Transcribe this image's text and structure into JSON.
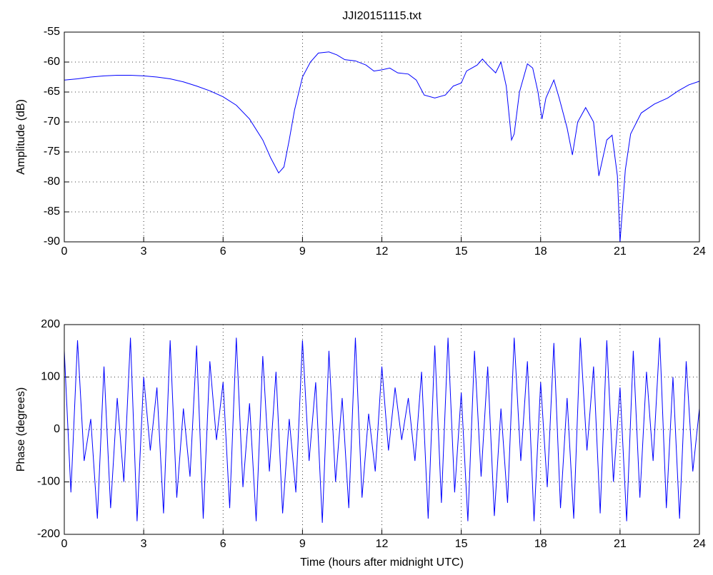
{
  "chart_data": [
    {
      "type": "line",
      "title": "JJI20151115.txt",
      "y_label": "Amplitude (dB)",
      "grid": true,
      "xlim": [
        0,
        24
      ],
      "xticks": [
        0,
        3,
        6,
        9,
        12,
        15,
        18,
        21,
        24
      ],
      "ylim": [
        -90,
        -55
      ],
      "yticks": [
        -90,
        -85,
        -80,
        -75,
        -70,
        -65,
        -60,
        -55
      ],
      "x": [
        0,
        0.5,
        1,
        1.5,
        2,
        2.5,
        3,
        3.5,
        4,
        4.5,
        5,
        5.5,
        6,
        6.5,
        7,
        7.5,
        7.8,
        8.1,
        8.3,
        8.5,
        8.7,
        9,
        9.3,
        9.6,
        10,
        10.3,
        10.6,
        11,
        11.4,
        11.7,
        12,
        12.3,
        12.6,
        13,
        13.3,
        13.6,
        14,
        14.4,
        14.7,
        15,
        15.2,
        15.6,
        15.8,
        16,
        16.3,
        16.5,
        16.7,
        16.9,
        17,
        17.2,
        17.5,
        17.7,
        17.9,
        18.05,
        18.2,
        18.5,
        18.7,
        19,
        19.2,
        19.4,
        19.7,
        20,
        20.2,
        20.5,
        20.7,
        20.9,
        21,
        21.2,
        21.4,
        21.8,
        22.3,
        22.8,
        23.2,
        23.6,
        24
      ],
      "series": [
        {
          "color": "#0000ff",
          "values": [
            -63,
            -62.8,
            -62.5,
            -62.3,
            -62.2,
            -62.2,
            -62.3,
            -62.5,
            -62.8,
            -63.3,
            -64,
            -64.8,
            -65.8,
            -67.2,
            -69.5,
            -73,
            -76,
            -78.5,
            -77.5,
            -73,
            -68,
            -62.5,
            -60,
            -58.5,
            -58.3,
            -58.8,
            -59.6,
            -59.8,
            -60.5,
            -61.5,
            -61.3,
            -61,
            -61.8,
            -62,
            -63,
            -65.5,
            -66,
            -65.5,
            -64,
            -63.5,
            -61.5,
            -60.5,
            -59.5,
            -60.5,
            -61.8,
            -60,
            -64,
            -73,
            -72,
            -65,
            -60.3,
            -61,
            -65,
            -69.5,
            -66,
            -63,
            -66,
            -71,
            -75.5,
            -70,
            -67.6,
            -70,
            -79,
            -73,
            -72.2,
            -79,
            -90,
            -78,
            -72,
            -68.5,
            -67,
            -66,
            -64.8,
            -63.8,
            -63.2
          ]
        }
      ]
    },
    {
      "type": "line",
      "y_label": "Phase (degrees)",
      "x_label": "Time (hours after midnight UTC)",
      "grid": true,
      "xlim": [
        0,
        24
      ],
      "xticks": [
        0,
        3,
        6,
        9,
        12,
        15,
        18,
        21,
        24
      ],
      "ylim": [
        -200,
        200
      ],
      "yticks": [
        -200,
        -100,
        0,
        100,
        200
      ],
      "x": [
        0,
        0.25,
        0.5,
        0.75,
        1,
        1.25,
        1.5,
        1.75,
        2,
        2.25,
        2.5,
        2.75,
        3,
        3.25,
        3.5,
        3.75,
        4,
        4.25,
        4.5,
        4.75,
        5,
        5.25,
        5.5,
        5.75,
        6,
        6.25,
        6.5,
        6.75,
        7,
        7.25,
        7.5,
        7.75,
        8,
        8.25,
        8.5,
        8.75,
        9,
        9.25,
        9.5,
        9.75,
        10,
        10.25,
        10.5,
        10.75,
        11,
        11.25,
        11.5,
        11.75,
        12,
        12.25,
        12.5,
        12.75,
        13,
        13.25,
        13.5,
        13.75,
        14,
        14.25,
        14.5,
        14.75,
        15,
        15.25,
        15.5,
        15.75,
        16,
        16.25,
        16.5,
        16.75,
        17,
        17.25,
        17.5,
        17.75,
        18,
        18.25,
        18.5,
        18.75,
        19,
        19.25,
        19.5,
        19.75,
        20,
        20.25,
        20.5,
        20.75,
        21,
        21.25,
        21.5,
        21.75,
        22,
        22.25,
        22.5,
        22.75,
        23,
        23.25,
        23.5,
        23.75,
        24
      ],
      "series": [
        {
          "color": "#0000ff",
          "values": [
            150,
            -120,
            170,
            -60,
            20,
            -170,
            120,
            -150,
            60,
            -100,
            175,
            -175,
            100,
            -40,
            80,
            -160,
            170,
            -130,
            40,
            -90,
            160,
            -170,
            130,
            -20,
            90,
            -150,
            175,
            -110,
            50,
            -175,
            140,
            -80,
            110,
            -160,
            20,
            -120,
            170,
            -60,
            90,
            -178,
            150,
            -100,
            60,
            -150,
            175,
            -130,
            30,
            -80,
            120,
            -40,
            80,
            -20,
            60,
            -60,
            110,
            -170,
            160,
            -140,
            175,
            -120,
            70,
            -175,
            150,
            -90,
            120,
            -165,
            40,
            -140,
            175,
            -60,
            130,
            -175,
            90,
            -110,
            165,
            -150,
            60,
            -170,
            175,
            -40,
            120,
            -160,
            170,
            -100,
            80,
            -175,
            150,
            -130,
            110,
            -60,
            175,
            -150,
            100,
            -170,
            130,
            -80,
            40
          ]
        }
      ]
    }
  ]
}
